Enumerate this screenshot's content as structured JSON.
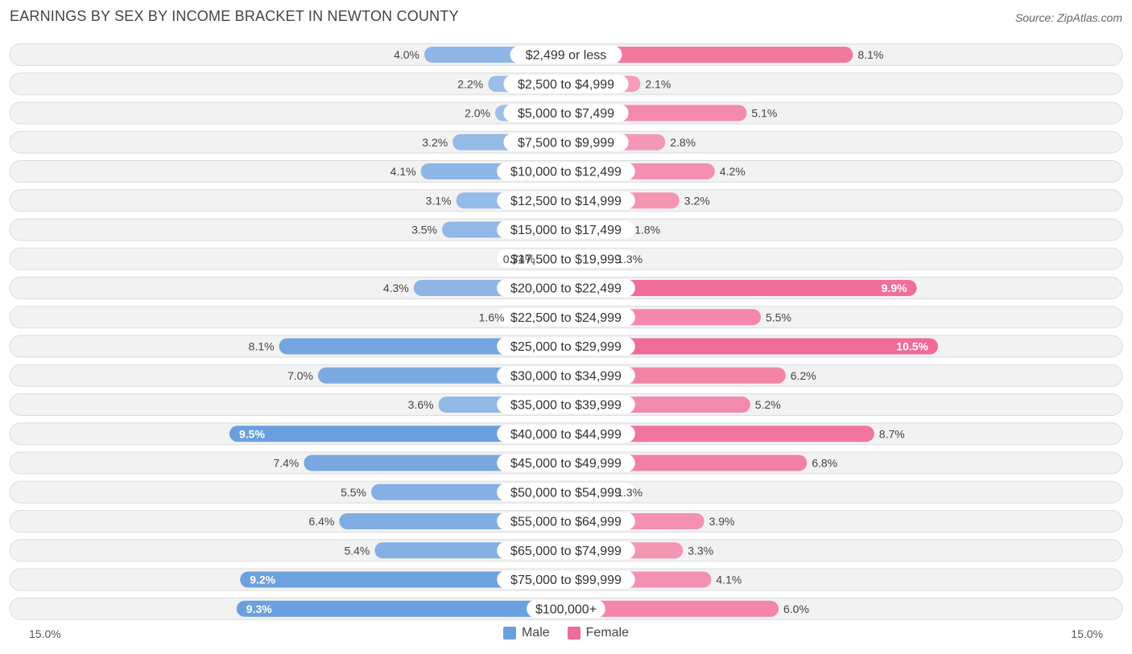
{
  "header": {
    "title": "EARNINGS BY SEX BY INCOME BRACKET IN NEWTON COUNTY",
    "source": "Source: ZipAtlas.com"
  },
  "colors": {
    "male": "#6a9fde",
    "male_light": "#a9c7ec",
    "female": "#f06b96",
    "female_light": "#f6a8c0"
  },
  "axis": {
    "left_label": "15.0%",
    "right_label": "15.0%"
  },
  "legend": {
    "male_label": "Male",
    "female_label": "Female"
  },
  "chart_data": {
    "type": "bar",
    "orientation": "horizontal-diverging",
    "title": "EARNINGS BY SEX BY INCOME BRACKET IN NEWTON COUNTY",
    "xlim": [
      -15,
      15
    ],
    "categories": [
      "$2,499 or less",
      "$2,500 to $4,999",
      "$5,000 to $7,499",
      "$7,500 to $9,999",
      "$10,000 to $12,499",
      "$12,500 to $14,999",
      "$15,000 to $17,499",
      "$17,500 to $19,999",
      "$20,000 to $22,499",
      "$22,500 to $24,999",
      "$25,000 to $29,999",
      "$30,000 to $34,999",
      "$35,000 to $39,999",
      "$40,000 to $44,999",
      "$45,000 to $49,999",
      "$50,000 to $54,999",
      "$55,000 to $64,999",
      "$65,000 to $74,999",
      "$75,000 to $99,999",
      "$100,000+"
    ],
    "series": [
      {
        "name": "Male",
        "values": [
          4.0,
          2.2,
          2.0,
          3.2,
          4.1,
          3.1,
          3.5,
          0.74,
          4.3,
          1.6,
          8.1,
          7.0,
          3.6,
          9.5,
          7.4,
          5.5,
          6.4,
          5.4,
          9.2,
          9.3
        ],
        "labels": [
          "4.0%",
          "2.2%",
          "2.0%",
          "3.2%",
          "4.1%",
          "3.1%",
          "3.5%",
          "0.74%",
          "4.3%",
          "1.6%",
          "8.1%",
          "7.0%",
          "3.6%",
          "9.5%",
          "7.4%",
          "5.5%",
          "6.4%",
          "5.4%",
          "9.2%",
          "9.3%"
        ]
      },
      {
        "name": "Female",
        "values": [
          8.1,
          2.1,
          5.1,
          2.8,
          4.2,
          3.2,
          1.8,
          1.3,
          9.9,
          5.5,
          10.5,
          6.2,
          5.2,
          8.7,
          6.8,
          1.3,
          3.9,
          3.3,
          4.1,
          6.0
        ],
        "labels": [
          "8.1%",
          "2.1%",
          "5.1%",
          "2.8%",
          "4.2%",
          "3.2%",
          "1.8%",
          "1.3%",
          "9.9%",
          "5.5%",
          "10.5%",
          "6.2%",
          "5.2%",
          "8.7%",
          "6.8%",
          "1.3%",
          "3.9%",
          "3.3%",
          "4.1%",
          "6.0%"
        ]
      }
    ]
  }
}
